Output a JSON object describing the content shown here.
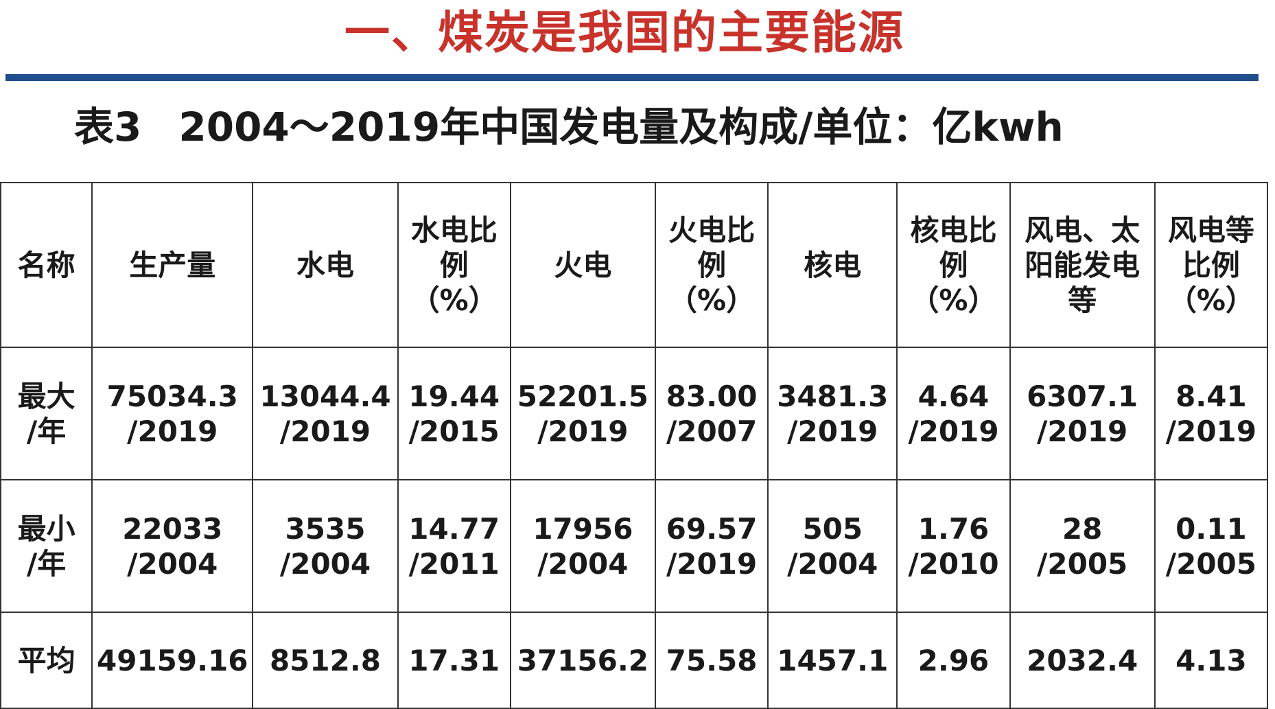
{
  "slide": {
    "title": "一、煤炭是我国的主要能源"
  },
  "caption": {
    "label": "表3",
    "text": "2004～2019年中国发电量及构成/单位：亿kwh"
  },
  "colors": {
    "title": "#c8322b",
    "rule": "#1f4e8c",
    "percent_text": "#8e3a3a"
  },
  "table": {
    "headers": [
      {
        "lines": [
          "名称"
        ],
        "percent": false
      },
      {
        "lines": [
          "生产量"
        ],
        "percent": false
      },
      {
        "lines": [
          "水电"
        ],
        "percent": false
      },
      {
        "lines": [
          "水电比",
          "例",
          "（%）"
        ],
        "percent": true
      },
      {
        "lines": [
          "火电"
        ],
        "percent": false
      },
      {
        "lines": [
          "火电比",
          "例",
          "（%）"
        ],
        "percent": true
      },
      {
        "lines": [
          "核电"
        ],
        "percent": false
      },
      {
        "lines": [
          "核电比",
          "例",
          "（%）"
        ],
        "percent": true
      },
      {
        "lines": [
          "风电、太",
          "阳能发电",
          "等"
        ],
        "percent": false
      },
      {
        "lines": [
          "风电等",
          "比例",
          "（%）"
        ],
        "percent": true
      }
    ],
    "rows": [
      {
        "name": [
          "最大",
          "/年"
        ],
        "cells": [
          [
            "75034.3",
            "/2019"
          ],
          [
            "13044.4",
            "/2019"
          ],
          [
            "19.44",
            "/2015"
          ],
          [
            "52201.5",
            "/2019"
          ],
          [
            "83.00",
            "/2007"
          ],
          [
            "3481.3",
            "/2019"
          ],
          [
            "4.64",
            "/2019"
          ],
          [
            "6307.1",
            "/2019"
          ],
          [
            "8.41",
            "/2019"
          ]
        ]
      },
      {
        "name": [
          "最小",
          "/年"
        ],
        "cells": [
          [
            "22033",
            "/2004"
          ],
          [
            "3535",
            "/2004"
          ],
          [
            "14.77",
            "/2011"
          ],
          [
            "17956",
            "/2004"
          ],
          [
            "69.57",
            "/2019"
          ],
          [
            "505",
            "/2004"
          ],
          [
            "1.76",
            "/2010"
          ],
          [
            "28",
            "/2005"
          ],
          [
            "0.11",
            "/2005"
          ]
        ]
      },
      {
        "name": [
          "平均"
        ],
        "cells": [
          [
            "49159.16"
          ],
          [
            "8512.8"
          ],
          [
            "17.31"
          ],
          [
            "37156.2"
          ],
          [
            "75.58"
          ],
          [
            "1457.1"
          ],
          [
            "2.96"
          ],
          [
            "2032.4"
          ],
          [
            "4.13"
          ]
        ]
      }
    ]
  }
}
